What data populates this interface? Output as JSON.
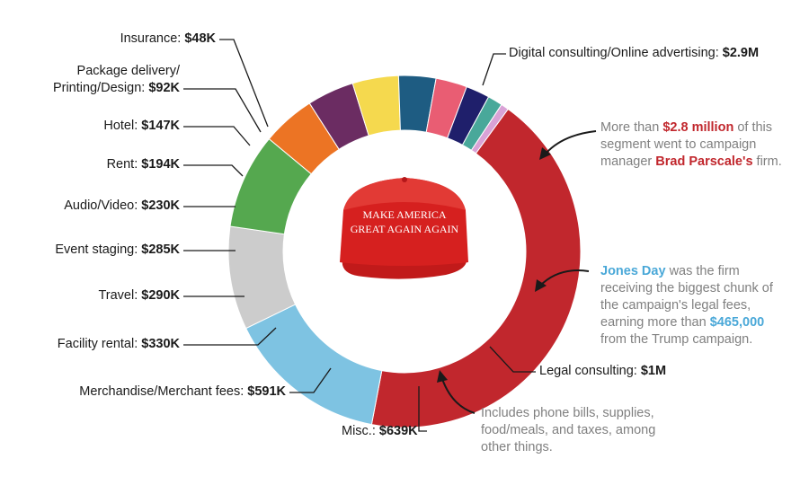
{
  "chart_data": {
    "type": "pie",
    "segments": [
      {
        "label": "Digital consulting/Online advertising",
        "value_label": "$2.9M",
        "value": 2900,
        "color": "#c1272d"
      },
      {
        "label": "Legal consulting",
        "value_label": "$1M",
        "value": 1000,
        "color": "#7ec3e2"
      },
      {
        "label": "Misc.",
        "value_label": "$639K",
        "value": 639,
        "color": "#cccccc"
      },
      {
        "label": "Merchandise/Merchant fees",
        "value_label": "$591K",
        "value": 591,
        "color": "#55a84f"
      },
      {
        "label": "Facility rental",
        "value_label": "$330K",
        "value": 330,
        "color": "#ec7424"
      },
      {
        "label": "Travel",
        "value_label": "$290K",
        "value": 290,
        "color": "#6b2c62"
      },
      {
        "label": "Event staging",
        "value_label": "$285K",
        "value": 285,
        "color": "#f5d94e"
      },
      {
        "label": "Audio/Video",
        "value_label": "$230K",
        "value": 230,
        "color": "#1e5c82"
      },
      {
        "label": "Rent",
        "value_label": "$194K",
        "value": 194,
        "color": "#e95d73"
      },
      {
        "label": "Hotel",
        "value_label": "$147K",
        "value": 147,
        "color": "#1f1f6b"
      },
      {
        "label": "Package delivery/ Printing/Design",
        "value_label": "$92K",
        "value": 92,
        "color": "#49a89a"
      },
      {
        "label": "Insurance",
        "value_label": "$48K",
        "value": 48,
        "color": "#d9a2d6"
      }
    ]
  },
  "labels": {
    "digital": {
      "name": "Digital consulting/Online advertising: ",
      "value": "$2.9M"
    },
    "legal": {
      "name": "Legal consulting: ",
      "value": "$1M"
    },
    "misc": {
      "name": "Misc.: ",
      "value": "$639K"
    },
    "merch": {
      "name": "Merchandise/Merchant fees: ",
      "value": "$591K"
    },
    "facility": {
      "name": "Facility rental: ",
      "value": "$330K"
    },
    "travel": {
      "name": "Travel: ",
      "value": "$290K"
    },
    "event": {
      "name": "Event staging: ",
      "value": "$285K"
    },
    "audio": {
      "name": "Audio/Video: ",
      "value": "$230K"
    },
    "rent": {
      "name": "Rent: ",
      "value": "$194K"
    },
    "hotel": {
      "name": "Hotel: ",
      "value": "$147K"
    },
    "package": {
      "line1": "Package delivery/",
      "line2": "Printing/Design: ",
      "value": "$92K"
    },
    "insurance": {
      "name": "Insurance: ",
      "value": "$48K"
    }
  },
  "notes": {
    "digital": {
      "t1": "More than ",
      "h1": "$2.8 million",
      "t2": " of this segment went to campaign manager ",
      "h2": "Brad Parscale's",
      "t3": " firm."
    },
    "legal": {
      "h1": "Jones Day",
      "t1": " was the firm receiving the biggest chunk of the campaign's legal fees, earning more than ",
      "h2": "$465,000",
      "t2": " from the Trump campaign."
    },
    "misc": {
      "text": "Includes phone bills, supplies, food/meals, and taxes, among other things."
    }
  },
  "hat": {
    "line1": "MAKE AMERICA",
    "line2": "GREAT AGAIN AGAIN",
    "color": "#d6201f"
  }
}
